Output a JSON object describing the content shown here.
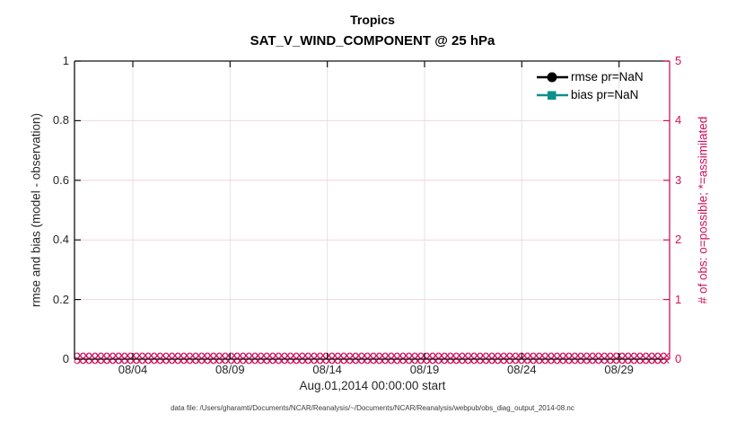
{
  "chart_data": {
    "type": "line",
    "title": "Tropics",
    "subtitle": "SAT_V_WIND_COMPONENT @ 25 hPa",
    "xlabel": "Aug.01,2014 00:00:00 start",
    "ylabel_left": "rmse and bias (model - observation)",
    "ylabel_right": "# of obs: o=possible; *=assimilated",
    "x_axis": {
      "start_label": "08/01",
      "tick_labels": [
        "08/04",
        "08/09",
        "08/14",
        "08/19",
        "08/24",
        "08/29"
      ],
      "tick_day_offsets": [
        3,
        8,
        13,
        18,
        23,
        28
      ],
      "axis_span_days": 30.6,
      "grid": true
    },
    "y_left_axis": {
      "min": 0,
      "max": 1,
      "tick_labels": [
        "0",
        "0.2",
        "0.4",
        "0.6",
        "0.8",
        "1"
      ],
      "tick_values": [
        0,
        0.2,
        0.4,
        0.6,
        0.8,
        1
      ]
    },
    "y_right_axis": {
      "min": 0,
      "max": 5,
      "tick_labels": [
        "0",
        "1",
        "2",
        "3",
        "4",
        "5"
      ],
      "tick_values": [
        0,
        1,
        2,
        3,
        4,
        5
      ],
      "grid": true
    },
    "legend": [
      {
        "label": "rmse pr=NaN",
        "color": "#000000",
        "marker": "circle"
      },
      {
        "label": "bias pr=NaN",
        "color": "#0e8f8a",
        "marker": "square"
      }
    ],
    "series": [
      {
        "name": "rmse",
        "axis": "left",
        "values": "NaN",
        "note": "all values NaN - no curve drawn"
      },
      {
        "name": "bias",
        "axis": "left",
        "values": "NaN",
        "note": "all values NaN - no curve drawn"
      },
      {
        "name": "obs possible",
        "axis": "right",
        "marker": "o",
        "constant_value": 0
      },
      {
        "name": "obs assimilated",
        "axis": "right",
        "marker": "x",
        "constant_value": 0
      }
    ],
    "colors": {
      "right_axis_pink": "#d2105c",
      "bias_teal": "#0e8f8a",
      "rmse_black": "#000000",
      "grid_vertical_gray": "#e3e3e3",
      "grid_horizontal_pink": "#f6d2df",
      "axis_black": "#111111",
      "tick_text": "#262626"
    },
    "caption": "data file: /Users/gharamti/Documents/NCAR/Reanalysis/~/Documents/NCAR/Reanalysis/webpub/obs_diag_output_2014-08.nc"
  }
}
